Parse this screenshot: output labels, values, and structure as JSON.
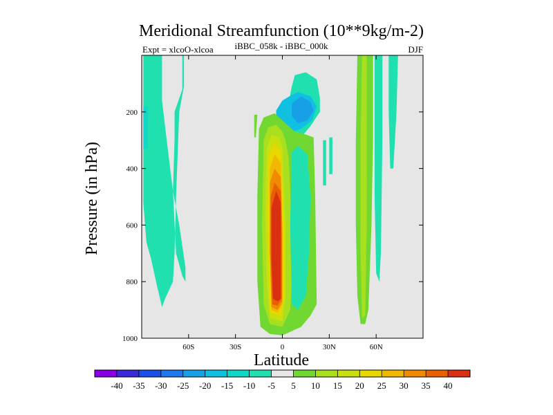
{
  "chart_data": {
    "type": "contour",
    "title": "Meridional Streamfunction (10**9kg/m-2)",
    "subtitle": "iBBC_058k - iBBC_000k",
    "experiment_label": "Expt = xlcoO-xlcoa",
    "season_label": "DJF",
    "xlabel": "Latitude",
    "ylabel": "Pressure (in hPa)",
    "xlim": [
      -90,
      90
    ],
    "ylim": [
      1000,
      0
    ],
    "y_reversed": true,
    "x_ticks": [
      {
        "value": -60,
        "label": "60S"
      },
      {
        "value": -30,
        "label": "30S"
      },
      {
        "value": 0,
        "label": "0"
      },
      {
        "value": 30,
        "label": "30N"
      },
      {
        "value": 60,
        "label": "60N"
      }
    ],
    "y_ticks": [
      {
        "value": 200,
        "label": "200"
      },
      {
        "value": 400,
        "label": "400"
      },
      {
        "value": 600,
        "label": "600"
      },
      {
        "value": 800,
        "label": "800"
      },
      {
        "value": 1000,
        "label": "1000"
      }
    ],
    "background_color": "#e6e6e6",
    "colorbar": {
      "levels": [
        -40,
        -35,
        -30,
        -25,
        -20,
        -15,
        -10,
        -5,
        5,
        10,
        15,
        20,
        25,
        30,
        35,
        40
      ],
      "level_labels": [
        "-40",
        "-35",
        "-30",
        "-25",
        "-20",
        "-15",
        "-10",
        "-5",
        "5",
        "10",
        "15",
        "20",
        "25",
        "30",
        "35",
        "40"
      ],
      "colors": [
        "#8a00e6",
        "#3a2ad8",
        "#1a50e8",
        "#1e78f0",
        "#18a0e6",
        "#10c0e0",
        "#10d8c8",
        "#20e0b0",
        "#e6e6e6",
        "#70d830",
        "#a8e020",
        "#c8e010",
        "#e8d800",
        "#f0b800",
        "#f08a00",
        "#e86000",
        "#d83010"
      ]
    },
    "regions": [
      {
        "name": "cell-sh-polar-dipole",
        "value": -5,
        "color": "#20e0b0",
        "outline": [
          [
            -89,
            0
          ],
          [
            -77,
            0
          ],
          [
            -77,
            160
          ],
          [
            -74,
            300
          ],
          [
            -70,
            480
          ],
          [
            -68,
            700
          ],
          [
            -64,
            780
          ],
          [
            -62,
            800
          ],
          [
            -62,
            750
          ],
          [
            -66,
            600
          ],
          [
            -70,
            480
          ],
          [
            -69,
            300
          ],
          [
            -69,
            200
          ],
          [
            -64,
            120
          ],
          [
            -64,
            0
          ],
          [
            -63,
            0
          ],
          [
            -63,
            110
          ],
          [
            -66,
            200
          ],
          [
            -67,
            350
          ],
          [
            -68,
            500
          ],
          [
            -69,
            700
          ],
          [
            -70,
            800
          ],
          [
            -75,
            860
          ],
          [
            -77,
            890
          ],
          [
            -80,
            820
          ],
          [
            -84,
            720
          ],
          [
            -87,
            660
          ],
          [
            -89,
            520
          ]
        ]
      },
      {
        "name": "cell-sh-cyan-upper",
        "value": -10,
        "color": "#10d8c8",
        "outline": [
          [
            -89,
            180
          ],
          [
            -86,
            180
          ],
          [
            -86,
            330
          ],
          [
            -89,
            330
          ]
        ]
      },
      {
        "name": "cell-small-spot-left",
        "value": 5,
        "color": "#70d830",
        "outline": [
          [
            -18,
            210
          ],
          [
            -16,
            210
          ],
          [
            -17,
            290
          ],
          [
            -18,
            290
          ]
        ]
      },
      {
        "name": "cell-upper-negative",
        "value": -5,
        "color": "#20e0b0",
        "outline": [
          [
            -6,
            250
          ],
          [
            -3,
            225
          ],
          [
            4,
            170
          ],
          [
            6,
            110
          ],
          [
            8,
            70
          ],
          [
            15,
            60
          ],
          [
            22,
            85
          ],
          [
            24,
            150
          ],
          [
            24,
            200
          ],
          [
            18,
            250
          ],
          [
            12,
            290
          ],
          [
            4,
            300
          ],
          [
            0,
            280
          ],
          [
            -4,
            260
          ]
        ]
      },
      {
        "name": "cell-upper-negative-mid",
        "value": -10,
        "color": "#10c0e0",
        "outline": [
          [
            -4,
            195
          ],
          [
            0,
            160
          ],
          [
            6,
            140
          ],
          [
            10,
            130
          ],
          [
            18,
            145
          ],
          [
            22,
            180
          ],
          [
            19,
            230
          ],
          [
            12,
            260
          ],
          [
            6,
            270
          ],
          [
            0,
            255
          ],
          [
            -4,
            230
          ]
        ]
      },
      {
        "name": "cell-upper-negative-core",
        "value": -15,
        "color": "#18a0e6",
        "outline": [
          [
            6,
            170
          ],
          [
            12,
            145
          ],
          [
            18,
            165
          ],
          [
            20,
            195
          ],
          [
            16,
            230
          ],
          [
            10,
            240
          ],
          [
            6,
            215
          ]
        ]
      },
      {
        "name": "cell-hadley-5",
        "value": 5,
        "color": "#70d830",
        "outline": [
          [
            -15,
            260
          ],
          [
            -12,
            220
          ],
          [
            -5,
            205
          ],
          [
            2,
            240
          ],
          [
            8,
            270
          ],
          [
            15,
            280
          ],
          [
            20,
            290
          ],
          [
            21,
            500
          ],
          [
            22,
            880
          ],
          [
            18,
            920
          ],
          [
            12,
            960
          ],
          [
            0,
            990
          ],
          [
            -8,
            985
          ],
          [
            -14,
            960
          ],
          [
            -16,
            800
          ],
          [
            -16,
            500
          ]
        ]
      },
      {
        "name": "cell-hadley-10",
        "value": 10,
        "color": "#a8e020",
        "outline": [
          [
            -12,
            300
          ],
          [
            -9,
            255
          ],
          [
            -4,
            245
          ],
          [
            0,
            270
          ],
          [
            2,
            300
          ],
          [
            4,
            360
          ],
          [
            6,
            600
          ],
          [
            6,
            800
          ],
          [
            5,
            900
          ],
          [
            0,
            960
          ],
          [
            -8,
            950
          ],
          [
            -12,
            880
          ],
          [
            -13,
            600
          ]
        ]
      },
      {
        "name": "cell-hadley-15",
        "value": 15,
        "color": "#c8e010",
        "outline": [
          [
            -10,
            330
          ],
          [
            -7,
            280
          ],
          [
            -2,
            290
          ],
          [
            0,
            330
          ],
          [
            2,
            600
          ],
          [
            2,
            850
          ],
          [
            0,
            940
          ],
          [
            -8,
            930
          ],
          [
            -10,
            800
          ],
          [
            -11,
            550
          ]
        ]
      },
      {
        "name": "cell-hadley-20",
        "value": 20,
        "color": "#e8d800",
        "outline": [
          [
            -9,
            360
          ],
          [
            -5,
            310
          ],
          [
            -1,
            340
          ],
          [
            1,
            600
          ],
          [
            1,
            860
          ],
          [
            -1,
            920
          ],
          [
            -8,
            910
          ],
          [
            -9,
            700
          ]
        ]
      },
      {
        "name": "cell-hadley-25",
        "value": 25,
        "color": "#f0b800",
        "outline": [
          [
            -8,
            400
          ],
          [
            -5,
            350
          ],
          [
            -1,
            380
          ],
          [
            0,
            600
          ],
          [
            0,
            880
          ],
          [
            -3,
            910
          ],
          [
            -7,
            900
          ],
          [
            -8,
            700
          ]
        ]
      },
      {
        "name": "cell-hadley-30",
        "value": 30,
        "color": "#f08a00",
        "outline": [
          [
            -8,
            450
          ],
          [
            -5,
            400
          ],
          [
            -1,
            430
          ],
          [
            0,
            620
          ],
          [
            0,
            870
          ],
          [
            -3,
            900
          ],
          [
            -7,
            890
          ],
          [
            -8,
            700
          ]
        ]
      },
      {
        "name": "cell-hadley-35",
        "value": 35,
        "color": "#e86000",
        "outline": [
          [
            -7.5,
            500
          ],
          [
            -5,
            450
          ],
          [
            -1,
            480
          ],
          [
            -0.5,
            650
          ],
          [
            -0.5,
            860
          ],
          [
            -3,
            885
          ],
          [
            -6.5,
            880
          ],
          [
            -7.5,
            700
          ]
        ]
      },
      {
        "name": "cell-hadley-40",
        "value": 40,
        "color": "#d83010",
        "outline": [
          [
            -7,
            540
          ],
          [
            -4,
            480
          ],
          [
            -1,
            520
          ],
          [
            -1,
            860
          ],
          [
            -3,
            870
          ],
          [
            -6,
            860
          ],
          [
            -7,
            720
          ]
        ]
      },
      {
        "name": "cell-eq-cyan-strip",
        "value": -5,
        "color": "#20e0b0",
        "outline": [
          [
            6,
            340
          ],
          [
            10,
            320
          ],
          [
            16,
            350
          ],
          [
            18,
            500
          ],
          [
            17,
            700
          ],
          [
            15,
            850
          ],
          [
            10,
            900
          ],
          [
            6,
            880
          ],
          [
            5,
            600
          ]
        ]
      },
      {
        "name": "cell-nh-thin-strip-a",
        "value": -5,
        "color": "#20e0b0",
        "outline": [
          [
            26,
            300
          ],
          [
            28,
            300
          ],
          [
            28,
            460
          ],
          [
            26,
            460
          ]
        ]
      },
      {
        "name": "cell-nh-thin-strip-b",
        "value": -5,
        "color": "#20e0b0",
        "outline": [
          [
            30,
            290
          ],
          [
            32,
            290
          ],
          [
            32,
            420
          ],
          [
            30,
            420
          ]
        ]
      },
      {
        "name": "cell-nh-green-wide",
        "value": 5,
        "color": "#70d830",
        "outline": [
          [
            48,
            0
          ],
          [
            58,
            0
          ],
          [
            58,
            300
          ],
          [
            57,
            600
          ],
          [
            55,
            900
          ],
          [
            53,
            950
          ],
          [
            50,
            950
          ],
          [
            48,
            850
          ],
          [
            47,
            600
          ],
          [
            47,
            300
          ]
        ]
      },
      {
        "name": "cell-nh-yellow-core",
        "value": 10,
        "color": "#a8e020",
        "outline": [
          [
            51,
            0
          ],
          [
            54,
            0
          ],
          [
            54,
            600
          ],
          [
            53,
            920
          ],
          [
            51,
            930
          ],
          [
            50,
            700
          ],
          [
            50,
            300
          ]
        ]
      },
      {
        "name": "cell-nh-cyan-right",
        "value": -5,
        "color": "#20e0b0",
        "outline": [
          [
            59,
            0
          ],
          [
            64,
            0
          ],
          [
            64,
            300
          ],
          [
            63,
            700
          ],
          [
            62,
            800
          ],
          [
            60,
            770
          ],
          [
            59,
            500
          ]
        ]
      },
      {
        "name": "cell-nh-cyan-far",
        "value": -5,
        "color": "#20e0b0",
        "outline": [
          [
            68,
            0
          ],
          [
            74,
            0
          ],
          [
            73,
            200
          ],
          [
            71,
            400
          ],
          [
            69,
            400
          ],
          [
            68,
            200
          ]
        ]
      }
    ]
  }
}
